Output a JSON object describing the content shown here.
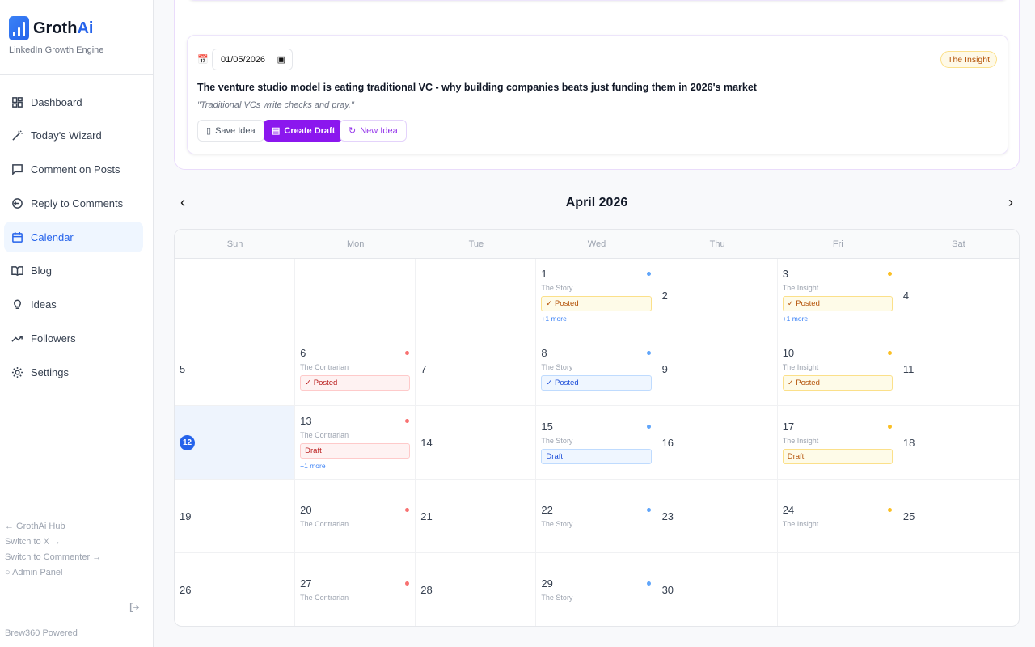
{
  "brand": {
    "name_a": "Groth",
    "name_b": "Ai",
    "tagline": "LinkedIn Growth Engine"
  },
  "nav": [
    {
      "label": "Dashboard",
      "icon": "grid-icon",
      "active": false
    },
    {
      "label": "Today's Wizard",
      "icon": "wand-icon",
      "active": false
    },
    {
      "label": "Comment on Posts",
      "icon": "message-square-icon",
      "active": false
    },
    {
      "label": "Reply to Comments",
      "icon": "reply-message-icon",
      "active": false
    },
    {
      "label": "Calendar",
      "icon": "calendar-icon",
      "active": true
    },
    {
      "label": "Blog",
      "icon": "book-open-icon",
      "active": false
    },
    {
      "label": "Ideas",
      "icon": "lightbulb-icon",
      "active": false
    },
    {
      "label": "Followers",
      "icon": "trending-up-icon",
      "active": false
    },
    {
      "label": "Settings",
      "icon": "gear-icon",
      "active": false
    }
  ],
  "footer": {
    "hub": "← GrothAi Hub",
    "switch_x": "Switch to X →",
    "switch_commenter": "Switch to Commenter →",
    "admin": "○ Admin Panel",
    "powered": "Brew360 Powered"
  },
  "idea_buttons": {
    "save": "Save Idea",
    "draft": "Create Draft",
    "new": "New Idea"
  },
  "idea": {
    "date": "01/05/2026",
    "title": "The venture studio model is eating traditional VC - why building companies beats just funding them in 2026's market",
    "quote": "\"Traditional VCs write checks and pray.\"",
    "pillar": "The Insight"
  },
  "calendar": {
    "month": "April 2026",
    "days_of_week": [
      "Sun",
      "Mon",
      "Tue",
      "Wed",
      "Thu",
      "Fri",
      "Sat"
    ],
    "today": 12,
    "colors": {
      "The Story": "#60a5fa",
      "The Contrarian": "#f87171",
      "The Insight": "#fbbf24"
    },
    "cells": [
      {},
      {},
      {},
      {
        "day": "1",
        "pillar": "The Story",
        "status": "✓ Posted",
        "style": "yellow",
        "more": "+1 more"
      },
      {
        "day": "2"
      },
      {
        "day": "3",
        "pillar": "The Insight",
        "status": "✓ Posted",
        "style": "yellow",
        "more": "+1 more"
      },
      {
        "day": "4"
      },
      {
        "day": "5"
      },
      {
        "day": "6",
        "pillar": "The Contrarian",
        "status": "✓ Posted",
        "style": "red"
      },
      {
        "day": "7"
      },
      {
        "day": "8",
        "pillar": "The Story",
        "status": "✓ Posted",
        "style": "blue"
      },
      {
        "day": "9"
      },
      {
        "day": "10",
        "pillar": "The Insight",
        "status": "✓ Posted",
        "style": "yellow"
      },
      {
        "day": "11"
      },
      {
        "day": "12"
      },
      {
        "day": "13",
        "pillar": "The Contrarian",
        "status": "Draft",
        "style": "red",
        "more": "+1 more"
      },
      {
        "day": "14"
      },
      {
        "day": "15",
        "pillar": "The Story",
        "status": "Draft",
        "style": "blue"
      },
      {
        "day": "16"
      },
      {
        "day": "17",
        "pillar": "The Insight",
        "status": "Draft",
        "style": "yellow"
      },
      {
        "day": "18"
      },
      {
        "day": "19"
      },
      {
        "day": "20",
        "pillar": "The Contrarian"
      },
      {
        "day": "21"
      },
      {
        "day": "22",
        "pillar": "The Story"
      },
      {
        "day": "23"
      },
      {
        "day": "24",
        "pillar": "The Insight"
      },
      {
        "day": "25"
      },
      {
        "day": "26"
      },
      {
        "day": "27",
        "pillar": "The Contrarian"
      },
      {
        "day": "28"
      },
      {
        "day": "29",
        "pillar": "The Story"
      },
      {
        "day": "30"
      },
      {},
      {}
    ]
  }
}
